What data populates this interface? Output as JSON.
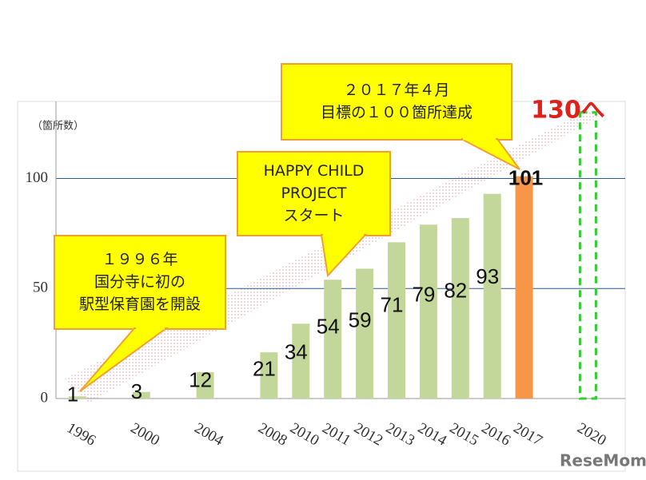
{
  "chart_data": {
    "type": "bar",
    "y_unit_label": "（箇所数）",
    "categories": [
      "1996",
      null,
      "2000",
      null,
      "2004",
      null,
      "2008",
      "2010",
      "2011",
      "2012",
      "2013",
      "2014",
      "2015",
      "2016",
      "2017",
      null,
      "2020"
    ],
    "values": [
      1,
      null,
      3,
      null,
      12,
      null,
      21,
      34,
      54,
      59,
      71,
      79,
      82,
      93,
      101,
      null,
      null
    ],
    "colors": [
      "#c4d79b",
      null,
      "#c4d79b",
      null,
      "#c4d79b",
      null,
      "#c4d79b",
      "#c4d79b",
      "#c4d79b",
      "#c4d79b",
      "#c4d79b",
      "#c4d79b",
      "#c4d79b",
      "#c4d79b",
      "#f79646",
      null,
      null
    ],
    "target": {
      "category": "2020",
      "value": 130,
      "label": "130へ",
      "color": "#33cc33",
      "label_color": "#e0201b"
    },
    "ylim": [
      0,
      135
    ],
    "yticks": [
      0,
      50,
      100
    ],
    "grid": true,
    "callouts": [
      {
        "lines": [
          "１９９６年",
          "国分寺に初の",
          "駅型保育園を開設"
        ]
      },
      {
        "lines": [
          "HAPPY CHILD",
          "PROJECT",
          "スタート"
        ]
      },
      {
        "lines": [
          "２０１７年４月",
          "目標の１００箇所達成"
        ]
      }
    ],
    "watermark": "ReseMom"
  }
}
